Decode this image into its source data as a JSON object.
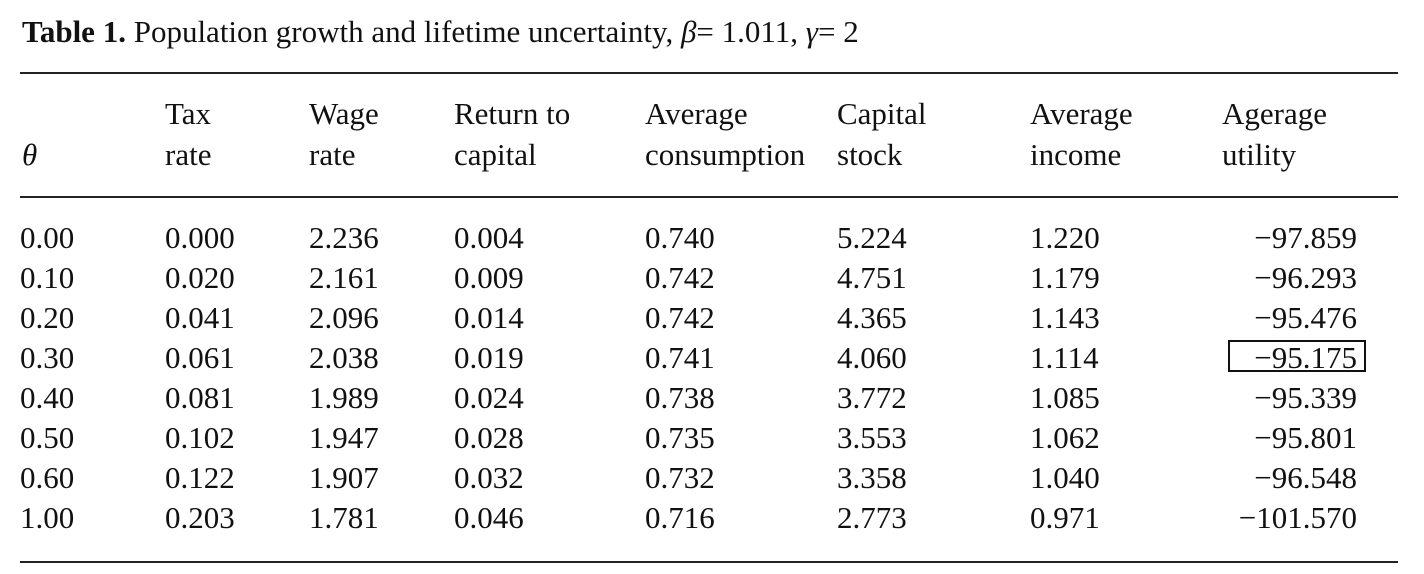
{
  "caption": {
    "label": "Table 1.",
    "text": "Population growth and lifetime uncertainty,",
    "beta_symbol": "β",
    "beta_value": "= 1.011,",
    "gamma_symbol": "γ",
    "gamma_value": "= 2"
  },
  "headers": {
    "theta": "θ",
    "tax": [
      "Tax",
      "rate"
    ],
    "wage": [
      "Wage",
      "rate"
    ],
    "return": [
      "Return to",
      "capital"
    ],
    "consumption": [
      "Average",
      "consumption"
    ],
    "capital": [
      "Capital",
      "stock"
    ],
    "income": [
      "Average",
      "income"
    ],
    "utility": [
      "Agerage",
      "utility"
    ]
  },
  "rows": [
    {
      "theta": "0.00",
      "tax": "0.000",
      "wage": "2.236",
      "ret": "0.004",
      "cons": "0.740",
      "cap": "5.224",
      "inc": "1.220",
      "util": "−97.859"
    },
    {
      "theta": "0.10",
      "tax": "0.020",
      "wage": "2.161",
      "ret": "0.009",
      "cons": "0.742",
      "cap": "4.751",
      "inc": "1.179",
      "util": "−96.293"
    },
    {
      "theta": "0.20",
      "tax": "0.041",
      "wage": "2.096",
      "ret": "0.014",
      "cons": "0.742",
      "cap": "4.365",
      "inc": "1.143",
      "util": "−95.476"
    },
    {
      "theta": "0.30",
      "tax": "0.061",
      "wage": "2.038",
      "ret": "0.019",
      "cons": "0.741",
      "cap": "4.060",
      "inc": "1.114",
      "util": "−95.175"
    },
    {
      "theta": "0.40",
      "tax": "0.081",
      "wage": "1.989",
      "ret": "0.024",
      "cons": "0.738",
      "cap": "3.772",
      "inc": "1.085",
      "util": "−95.339"
    },
    {
      "theta": "0.50",
      "tax": "0.102",
      "wage": "1.947",
      "ret": "0.028",
      "cons": "0.735",
      "cap": "3.553",
      "inc": "1.062",
      "util": "−95.801"
    },
    {
      "theta": "0.60",
      "tax": "0.122",
      "wage": "1.907",
      "ret": "0.032",
      "cons": "0.732",
      "cap": "3.358",
      "inc": "1.040",
      "util": "−96.548"
    },
    {
      "theta": "1.00",
      "tax": "0.203",
      "wage": "1.781",
      "ret": "0.046",
      "cons": "0.716",
      "cap": "2.773",
      "inc": "0.971",
      "util": "−101.570"
    }
  ],
  "boxed_row_index": 3
}
